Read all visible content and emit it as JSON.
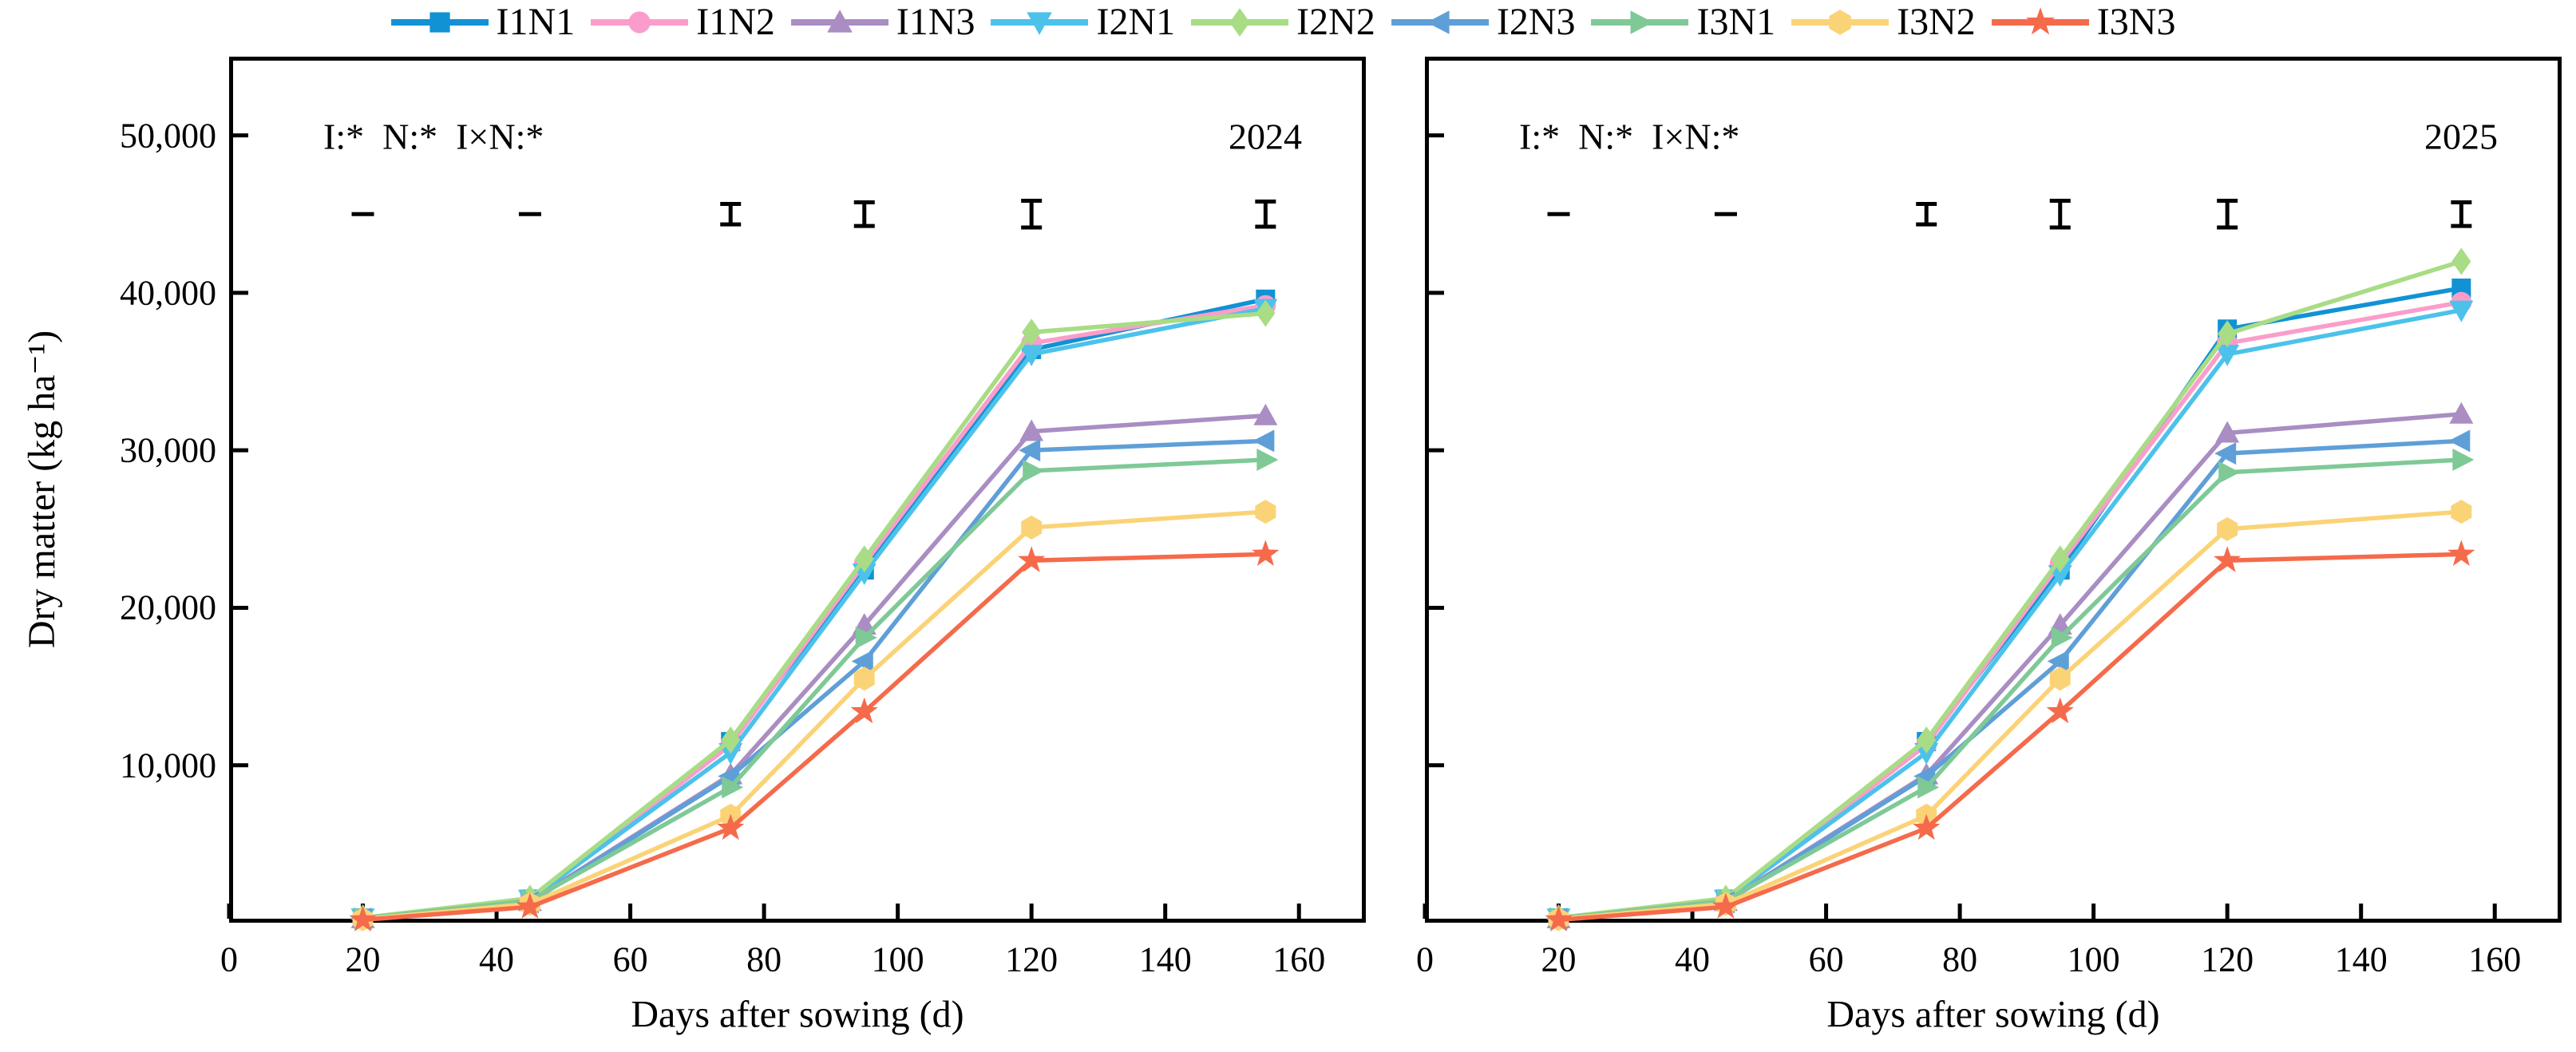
{
  "figure": {
    "y_axis_label": "Dry matter (kg ha⁻¹)",
    "x_axis_label": "Days after sowing (d)"
  },
  "legend": {
    "position": "top-center",
    "items": [
      {
        "label": "I1N1",
        "color": "#1192d4",
        "marker": "square"
      },
      {
        "label": "I1N2",
        "color": "#fb9dca",
        "marker": "circle"
      },
      {
        "label": "I1N3",
        "color": "#a98dc3",
        "marker": "triangle-up"
      },
      {
        "label": "I2N1",
        "color": "#4cc2eb",
        "marker": "triangle-down"
      },
      {
        "label": "I2N2",
        "color": "#a8dc85",
        "marker": "diamond"
      },
      {
        "label": "I2N3",
        "color": "#5f9fd8",
        "marker": "triangle-left"
      },
      {
        "label": "I3N1",
        "color": "#7fc997",
        "marker": "triangle-right"
      },
      {
        "label": "I3N2",
        "color": "#fbd377",
        "marker": "hexagon"
      },
      {
        "label": "I3N3",
        "color": "#f56a4b",
        "marker": "star"
      }
    ]
  },
  "chart_data": [
    {
      "type": "line",
      "title": "2024",
      "annotation": "I:*  N:*  I×N:*",
      "xlabel": "Days after sowing (d)",
      "ylabel": "Dry matter (kg ha⁻¹)",
      "x": [
        20,
        45,
        75,
        95,
        120,
        155
      ],
      "xlim": [
        0,
        170
      ],
      "ylim": [
        0,
        55000
      ],
      "xticks": [
        "0",
        "20",
        "40",
        "60",
        "80",
        "100",
        "120",
        "140",
        "160"
      ],
      "xtick_values": [
        0,
        20,
        40,
        60,
        80,
        100,
        120,
        140,
        160
      ],
      "yticks": [
        "10,000",
        "20,000",
        "30,000",
        "40,000",
        "50,000"
      ],
      "ytick_values": [
        10000,
        20000,
        30000,
        40000,
        50000
      ],
      "grid": false,
      "legend_position": "top",
      "series": [
        {
          "name": "I1N1",
          "values": [
            300,
            1500,
            11500,
            22400,
            36400,
            39600
          ]
        },
        {
          "name": "I1N2",
          "values": [
            280,
            1450,
            11300,
            22800,
            36800,
            39200
          ]
        },
        {
          "name": "I1N3",
          "values": [
            260,
            1350,
            9400,
            18900,
            31200,
            32200
          ]
        },
        {
          "name": "I2N1",
          "values": [
            290,
            1480,
            10800,
            22200,
            36100,
            39000
          ]
        },
        {
          "name": "I2N2",
          "values": [
            310,
            1550,
            11600,
            23100,
            37500,
            38700
          ]
        },
        {
          "name": "I2N3",
          "values": [
            250,
            1300,
            9300,
            16600,
            30000,
            30600
          ]
        },
        {
          "name": "I3N1",
          "values": [
            270,
            1400,
            8600,
            18100,
            28700,
            29400
          ]
        },
        {
          "name": "I3N2",
          "values": [
            220,
            1200,
            6800,
            15500,
            25100,
            26100
          ]
        },
        {
          "name": "I3N3",
          "values": [
            180,
            1000,
            6000,
            13400,
            23000,
            23400
          ]
        }
      ],
      "error_bars": {
        "y": 45000,
        "heights": [
          0,
          0,
          1300,
          1500,
          1700,
          1600
        ]
      }
    },
    {
      "type": "line",
      "title": "2025",
      "annotation": "I:*  N:*  I×N:*",
      "xlabel": "Days after sowing (d)",
      "ylabel": "Dry matter (kg ha⁻¹)",
      "x": [
        20,
        45,
        75,
        95,
        120,
        155
      ],
      "xlim": [
        0,
        170
      ],
      "ylim": [
        0,
        55000
      ],
      "xticks": [
        "0",
        "20",
        "40",
        "60",
        "80",
        "100",
        "120",
        "140",
        "160"
      ],
      "xtick_values": [
        0,
        20,
        40,
        60,
        80,
        100,
        120,
        140,
        160
      ],
      "yticks": [
        "10,000",
        "20,000",
        "30,000",
        "40,000",
        "50,000"
      ],
      "ytick_values": [
        10000,
        20000,
        30000,
        40000,
        50000
      ],
      "grid": false,
      "legend_position": "top",
      "series": [
        {
          "name": "I1N1",
          "values": [
            300,
            1500,
            11500,
            22400,
            37700,
            40300
          ]
        },
        {
          "name": "I1N2",
          "values": [
            280,
            1450,
            11300,
            22800,
            36800,
            39400
          ]
        },
        {
          "name": "I1N3",
          "values": [
            260,
            1350,
            9400,
            18900,
            31100,
            32300
          ]
        },
        {
          "name": "I2N1",
          "values": [
            290,
            1480,
            10800,
            22100,
            36100,
            38900
          ]
        },
        {
          "name": "I2N2",
          "values": [
            310,
            1550,
            11600,
            23100,
            37400,
            42000
          ]
        },
        {
          "name": "I2N3",
          "values": [
            250,
            1300,
            9300,
            16600,
            29800,
            30600
          ]
        },
        {
          "name": "I3N1",
          "values": [
            270,
            1400,
            8600,
            18100,
            28600,
            29400
          ]
        },
        {
          "name": "I3N2",
          "values": [
            220,
            1200,
            6800,
            15500,
            25000,
            26100
          ]
        },
        {
          "name": "I3N3",
          "values": [
            180,
            1000,
            6000,
            13400,
            23000,
            23400
          ]
        }
      ],
      "error_bars": {
        "y": 45000,
        "heights": [
          0,
          0,
          1300,
          1700,
          1700,
          1500
        ]
      }
    }
  ]
}
